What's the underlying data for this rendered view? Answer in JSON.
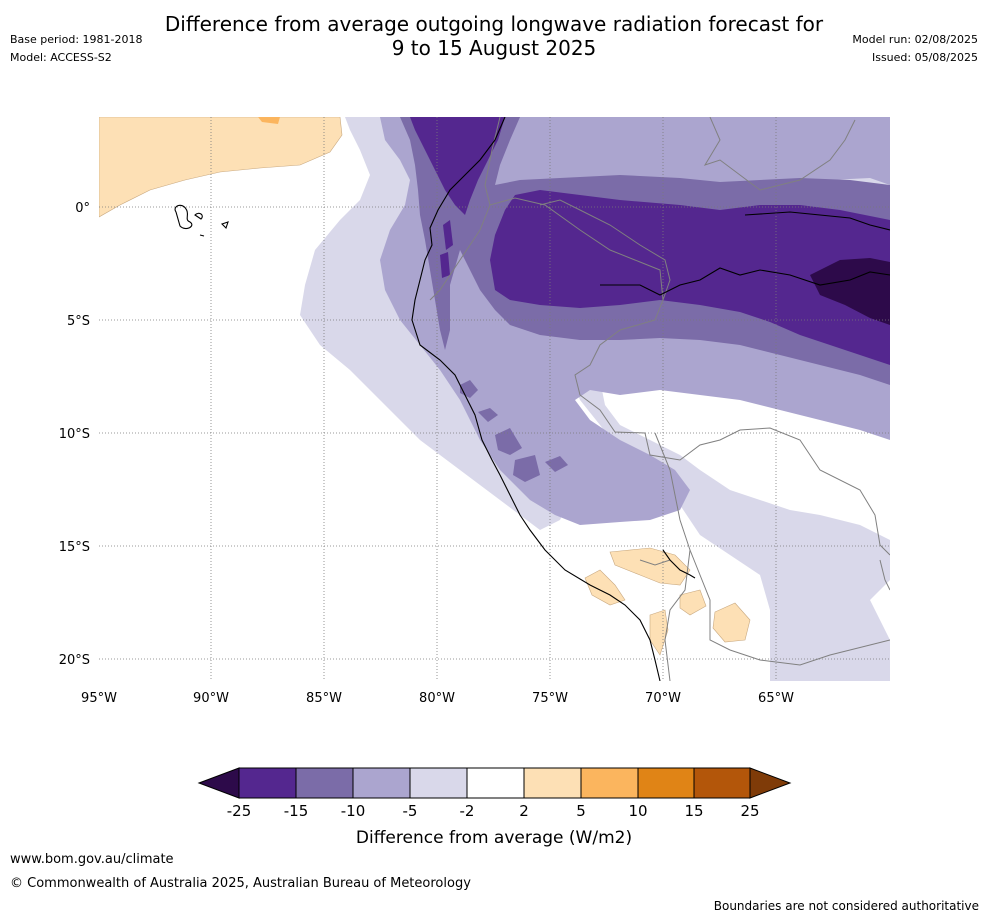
{
  "header": {
    "title_line1": "Difference from average outgoing longwave radiation forecast for",
    "title_line2": "9 to 15 August 2025",
    "base_period": "Base period: 1981-2018",
    "model": "Model: ACCESS-S2",
    "model_run": "Model run: 02/08/2025",
    "issued": "Issued: 05/08/2025"
  },
  "map": {
    "lon_ticks": [
      "95°W",
      "90°W",
      "85°W",
      "80°W",
      "75°W",
      "70°W",
      "65°W"
    ],
    "lat_ticks": [
      "0°",
      "5°S",
      "10°S",
      "15°S",
      "20°S"
    ]
  },
  "colorbar": {
    "ticks": [
      "-25",
      "-15",
      "-10",
      "-5",
      "-2",
      "2",
      "5",
      "10",
      "15",
      "25"
    ],
    "label": "Difference from average (W/m2)",
    "colors": {
      "lt_-25": "#2d0a4a",
      "-25_-15": "#54278f",
      "-15_-10": "#7b6ca8",
      "-10_-5": "#aba5cf",
      "-5_-2": "#d9d8ea",
      "-2_2": "#ffffff",
      "2_5": "#fde0b5",
      "5_10": "#fbb55e",
      "10_15": "#e08416",
      "15_25": "#b3560a",
      "gt_25": "#7f3b08"
    }
  },
  "footer": {
    "website": "www.bom.gov.au/climate",
    "copyright": "© Commonwealth of Australia 2025, Australian Bureau of Meteorology",
    "disclaimer": "Boundaries are not considered authoritative"
  }
}
